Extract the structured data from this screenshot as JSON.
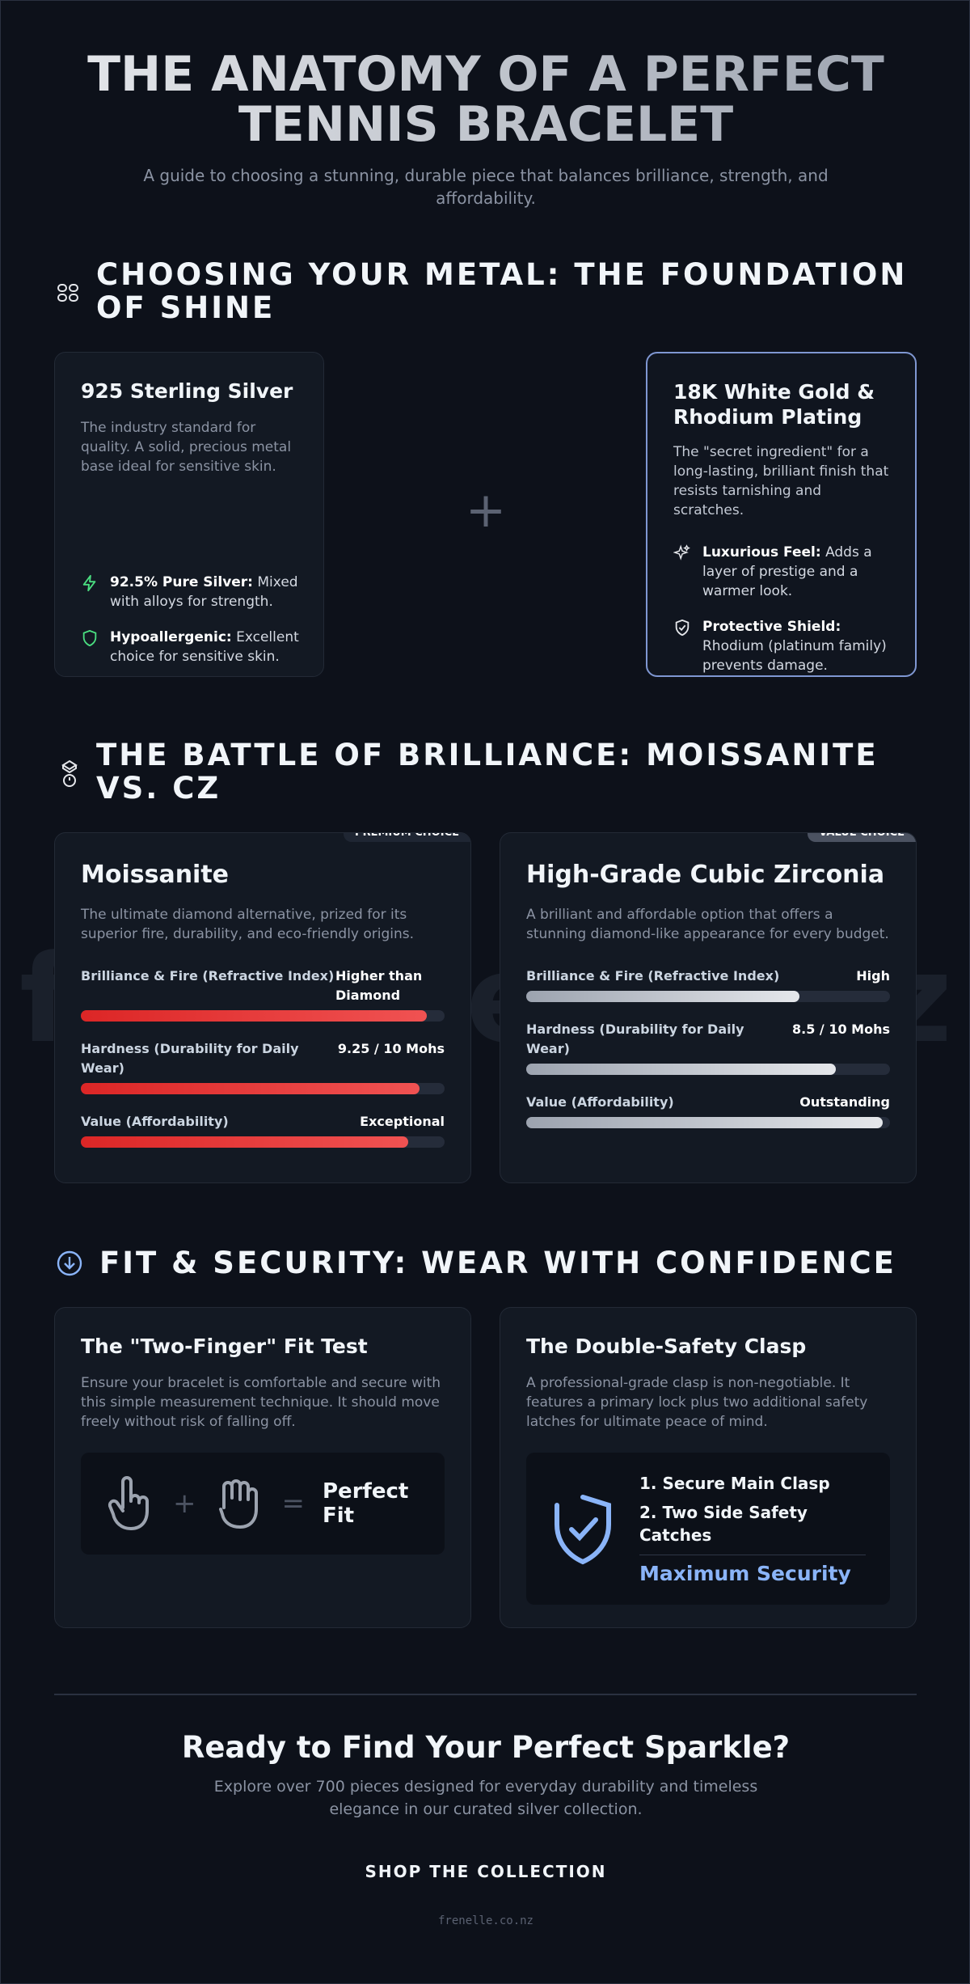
{
  "header": {
    "title": "THE ANATOMY OF A PERFECT TENNIS BRACELET",
    "subtitle": "A guide to choosing a stunning, durable piece that balances brilliance, strength, and affordability."
  },
  "watermark": "frenelle.co.nz",
  "metal": {
    "title": "CHOOSING YOUR METAL: THE FOUNDATION OF SHINE",
    "joiner": "+",
    "cards": [
      {
        "title": "925 Sterling Silver",
        "description": "The industry standard for quality. A solid, precious metal base ideal for sensitive skin.",
        "features": [
          {
            "label": "92.5% Pure Silver:",
            "text": "Mixed with alloys for strength."
          },
          {
            "label": "Hypoallergenic:",
            "text": "Excellent choice for sensitive skin."
          }
        ]
      },
      {
        "title": "18K White Gold & Rhodium Plating",
        "description": "The \"secret ingredient\" for a long-lasting, brilliant finish that resists tarnishing and scratches.",
        "features": [
          {
            "label": "Luxurious Feel:",
            "text": "Adds a layer of prestige and a warmer look."
          },
          {
            "label": "Protective Shield:",
            "text": "Rhodium (platinum family) prevents damage."
          }
        ]
      }
    ]
  },
  "brilliance": {
    "title": "THE BATTLE OF BRILLIANCE: MOISSANITE VS. CZ",
    "cards": [
      {
        "badge": "PREMIUM CHOICE",
        "title": "Moissanite",
        "description": "The ultimate diamond alternative, prized for its superior fire, durability, and eco-friendly origins.",
        "metrics": [
          {
            "label": "Brilliance & Fire (Refractive Index)",
            "value": "Higher than Diamond",
            "level": 95
          },
          {
            "label": "Hardness (Durability for Daily Wear)",
            "value": "9.25 / 10 Mohs",
            "level": 93
          },
          {
            "label": "Value (Affordability)",
            "value": "Exceptional",
            "level": 90
          }
        ]
      },
      {
        "badge": "VALUE CHOICE",
        "title": "High-Grade Cubic Zirconia",
        "description": "A brilliant and affordable option that offers a stunning diamond-like appearance for every budget.",
        "metrics": [
          {
            "label": "Brilliance & Fire (Refractive Index)",
            "value": "High",
            "level": 75
          },
          {
            "label": "Hardness (Durability for Daily Wear)",
            "value": "8.5 / 10 Mohs",
            "level": 85
          },
          {
            "label": "Value (Affordability)",
            "value": "Outstanding",
            "level": 98
          }
        ]
      }
    ]
  },
  "fit": {
    "title": "FIT & SECURITY: WEAR WITH CONFIDENCE",
    "test": {
      "title": "The \"Two-Finger\" Fit Test",
      "description": "Ensure your bracelet is comfortable and secure with this simple measurement technique. It should move freely without risk of falling off.",
      "plus": "+",
      "equals": "=",
      "result": "Perfect Fit"
    },
    "clasp": {
      "title": "The Double-Safety Clasp",
      "description": "A professional-grade clasp is non-negotiable. It features a primary lock plus two additional safety latches for ultimate peace of mind.",
      "items": [
        "1. Secure Main Clasp",
        "2. Two Side Safety Catches"
      ],
      "result": "Maximum Security"
    }
  },
  "cta": {
    "title": "Ready to Find Your Perfect Sparkle?",
    "description": "Explore over 700 pieces designed for everyday durability and timeless elegance in our curated silver collection.",
    "button": "SHOP THE COLLECTION"
  },
  "footer": "frenelle.co.nz"
}
